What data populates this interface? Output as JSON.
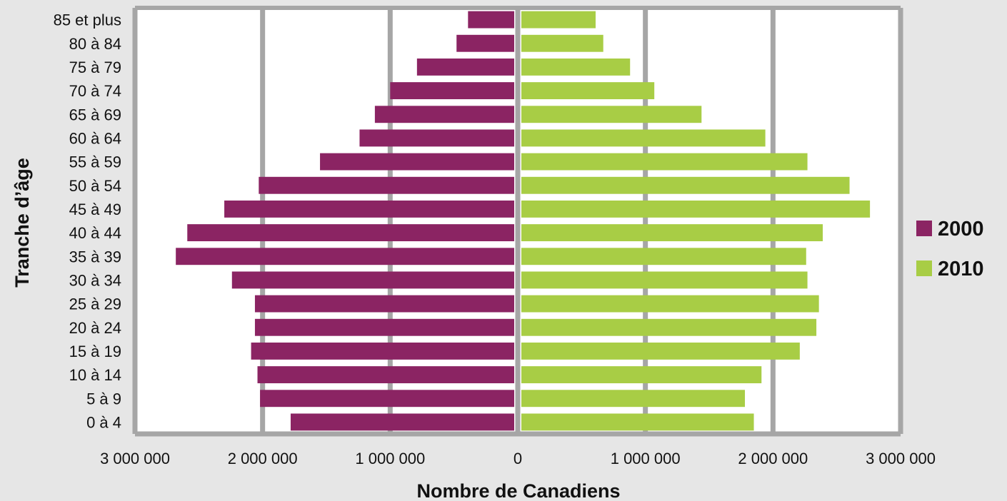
{
  "chart_data": {
    "type": "bar",
    "orientation": "horizontal-population-pyramid",
    "xlabel": "Nombre de Canadiens",
    "ylabel": "Tranche d’âge",
    "xlim": [
      -3000000,
      3000000
    ],
    "x_ticks": [
      -3000000,
      -2000000,
      -1000000,
      0,
      1000000,
      2000000,
      3000000
    ],
    "x_tick_labels": [
      "3 000 000",
      "2 000 000",
      "1 000 000",
      "0",
      "1 000 000",
      "2 000 000",
      "3 000 000"
    ],
    "grid": true,
    "legend_position": "right",
    "categories": [
      "0 à 4",
      "5 à 9",
      "10 à 14",
      "15 à 19",
      "20 à 24",
      "25 à 29",
      "30 à 34",
      "35 à 39",
      "40 à 44",
      "45 à 49",
      "50 à 54",
      "55 à 59",
      "60 à 64",
      "65 à 69",
      "70 à 74",
      "75 à 79",
      "80 à 84",
      "85 et plus"
    ],
    "series": [
      {
        "name": "2000",
        "color": "#8b2463",
        "side": "left",
        "values": [
          1780000,
          2020000,
          2040000,
          2090000,
          2060000,
          2060000,
          2240000,
          2680000,
          2590000,
          2300000,
          2030000,
          1550000,
          1240000,
          1120000,
          1000000,
          790000,
          480000,
          390000
        ]
      },
      {
        "name": "2010",
        "color": "#a8cd45",
        "side": "right",
        "values": [
          1850000,
          1780000,
          1910000,
          2210000,
          2340000,
          2360000,
          2270000,
          2260000,
          2390000,
          2760000,
          2600000,
          2270000,
          1940000,
          1440000,
          1070000,
          880000,
          670000,
          610000
        ]
      }
    ]
  }
}
